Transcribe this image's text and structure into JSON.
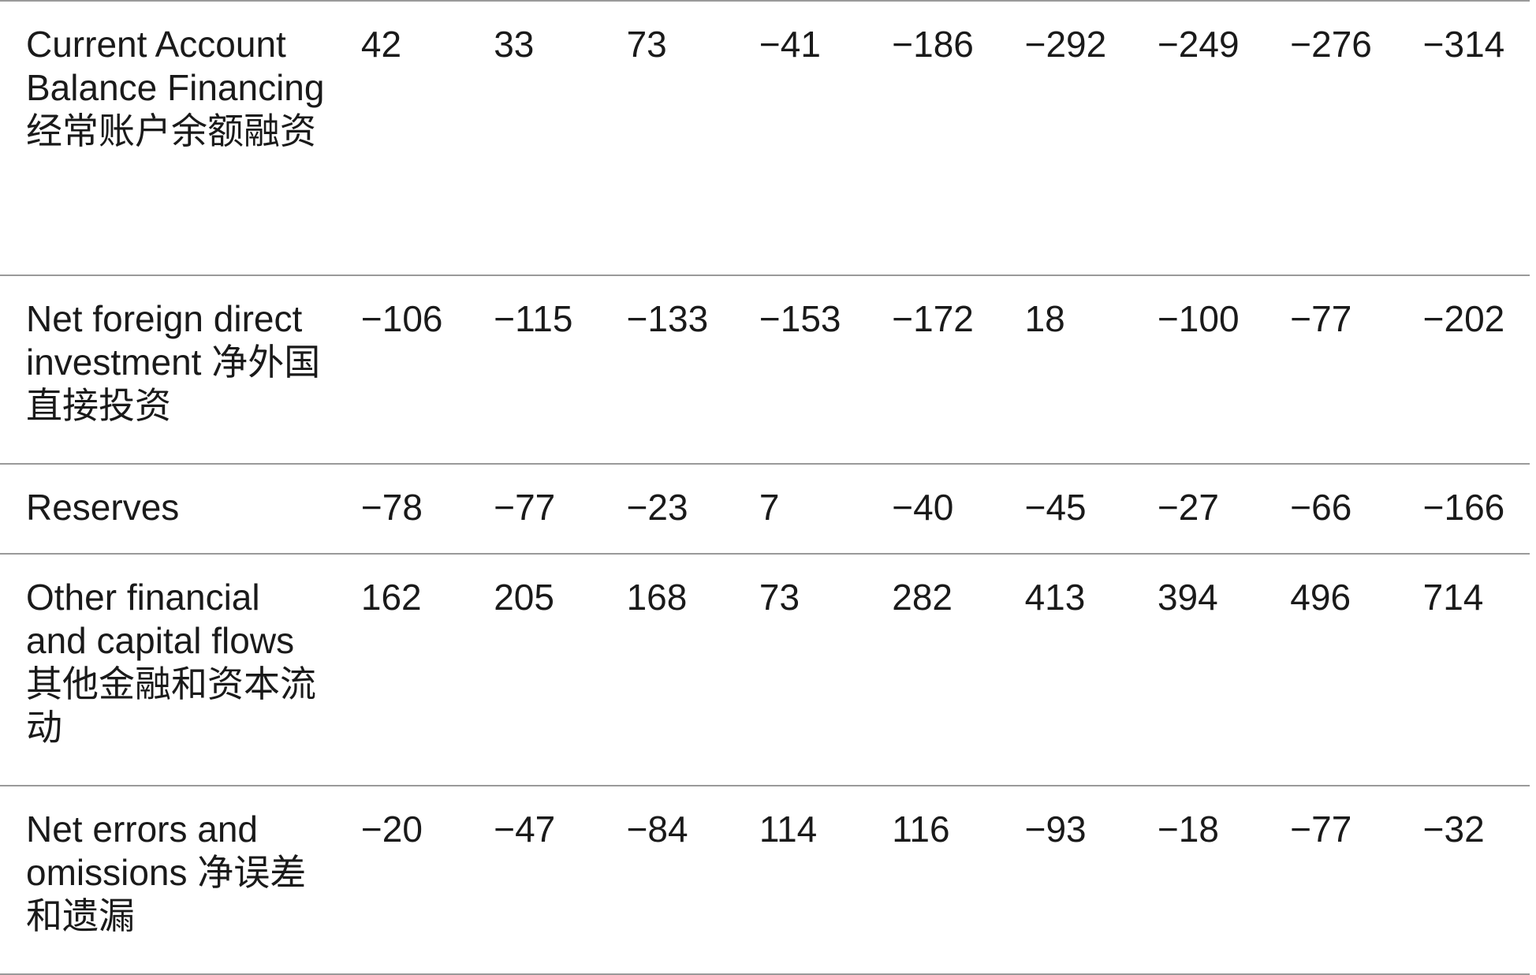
{
  "table": {
    "rows": [
      {
        "label": "Current Account Balance Financing 经常账户余额融资",
        "values": [
          "42",
          "33",
          "73",
          "−41",
          "−186",
          "−292",
          "−249",
          "−276",
          "−314"
        ]
      },
      {
        "label": "Net foreign direct investment 净外国直接投资",
        "values": [
          "−106",
          "−115",
          "−133",
          "−153",
          "−172",
          "18",
          "−100",
          "−77",
          "−202"
        ]
      },
      {
        "label": "Reserves",
        "values": [
          "−78",
          "−77",
          "−23",
          "7",
          "−40",
          "−45",
          "−27",
          "−66",
          "−166"
        ]
      },
      {
        "label": "Other financial and capital flows 其他金融和资本流动",
        "values": [
          "162",
          "205",
          "168",
          "73",
          "282",
          "413",
          "394",
          "496",
          "714"
        ]
      },
      {
        "label": "Net errors and omissions 净误差和遗漏",
        "values": [
          "−20",
          "−47",
          "−84",
          "114",
          "116",
          "−93",
          "−18",
          "−77",
          "−32"
        ]
      }
    ]
  }
}
